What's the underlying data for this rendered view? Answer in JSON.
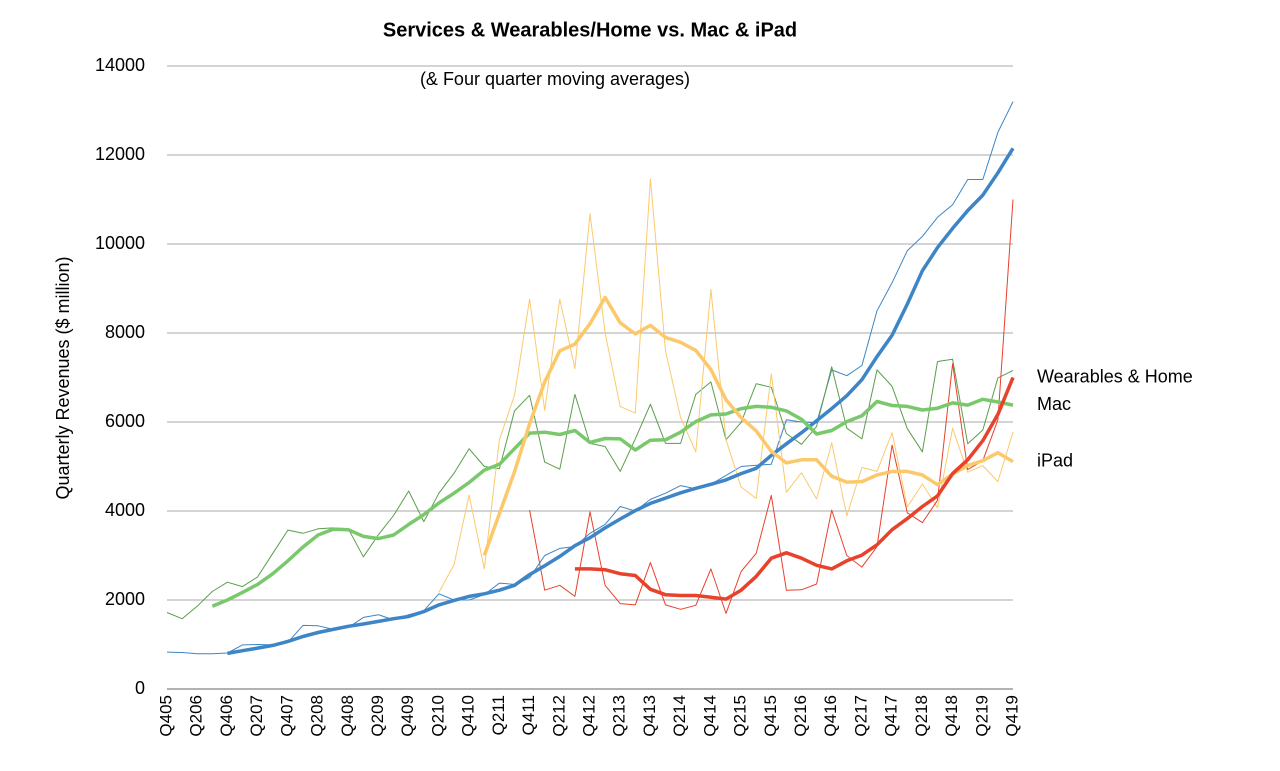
{
  "chart_data": {
    "type": "line",
    "title": "Services & Wearables/Home vs. Mac & iPad",
    "subtitle": "(& Four quarter moving averages)",
    "y_label": "Quarterly Revenues ($ million)",
    "categories": [
      "Q405",
      null,
      "Q206",
      null,
      "Q406",
      null,
      "Q207",
      null,
      "Q407",
      null,
      "Q208",
      null,
      "Q408",
      null,
      "Q209",
      null,
      "Q409",
      null,
      "Q210",
      null,
      "Q410",
      null,
      "Q211",
      null,
      "Q411",
      null,
      "Q212",
      null,
      "Q412",
      null,
      "Q213",
      null,
      "Q413",
      null,
      "Q214",
      null,
      "Q414",
      null,
      "Q215",
      null,
      "Q415",
      null,
      "Q216",
      null,
      "Q416",
      null,
      "Q217",
      null,
      "Q417",
      null,
      "Q218",
      null,
      "Q418",
      null,
      "Q219",
      null,
      "Q419"
    ],
    "ylim": [
      0,
      14000
    ],
    "yticks": [
      0,
      2000,
      4000,
      6000,
      8000,
      10000,
      12000,
      14000
    ],
    "grid": true,
    "series": [
      {
        "color": "#3d85c6",
        "width": 1,
        "values": [
          830,
          820,
          790,
          790,
          810,
          990,
          1000,
          990,
          1050,
          1430,
          1420,
          1340,
          1380,
          1610,
          1670,
          1550,
          1670,
          1760,
          2140,
          2000,
          2000,
          2120,
          2380,
          2350,
          2500,
          3000,
          3160,
          3200,
          3500,
          3700,
          4100,
          4000,
          4260,
          4400,
          4570,
          4500,
          4600,
          4800,
          5000,
          5030,
          5050,
          6050,
          6000,
          5980,
          7170,
          7040,
          7270,
          8500,
          9130,
          9850,
          10170,
          10600,
          10880,
          11450,
          11450,
          12510,
          13200
        ]
      },
      {
        "color": "#5a9e4a",
        "width": 1,
        "values": [
          1720,
          1580,
          1860,
          2190,
          2400,
          2300,
          2520,
          3050,
          3570,
          3500,
          3600,
          3620,
          3600,
          2970,
          3470,
          3900,
          4450,
          3760,
          4400,
          4850,
          5400,
          5000,
          4950,
          6250,
          6600,
          5100,
          4940,
          6620,
          5520,
          5450,
          4890,
          5620,
          6400,
          5520,
          5520,
          6620,
          6900,
          5600,
          5990,
          6860,
          6780,
          5740,
          5500,
          5900,
          7240,
          5860,
          5620,
          7170,
          6800,
          5850,
          5330,
          7360,
          7410,
          5510,
          5820,
          6990,
          7160
        ]
      },
      {
        "color": "#fbc96c",
        "width": 1,
        "values": [
          null,
          null,
          null,
          null,
          null,
          null,
          null,
          null,
          null,
          null,
          null,
          null,
          null,
          null,
          null,
          null,
          null,
          null,
          2170,
          2790,
          4360,
          2700,
          5600,
          6600,
          8760,
          6260,
          8760,
          7200,
          10680,
          8000,
          6350,
          6200,
          11460,
          7600,
          6100,
          5330,
          8980,
          5600,
          4540,
          4280,
          7080,
          4420,
          4860,
          4270,
          5530,
          3890,
          4980,
          4890,
          5760,
          4090,
          4610,
          4070,
          5860,
          4870,
          5020,
          4660,
          5770
        ]
      },
      {
        "color": "#e8412c",
        "width": 1,
        "values": [
          null,
          null,
          null,
          null,
          null,
          null,
          null,
          null,
          null,
          null,
          null,
          null,
          null,
          null,
          null,
          null,
          null,
          null,
          null,
          null,
          null,
          null,
          null,
          null,
          4020,
          2220,
          2330,
          2080,
          3980,
          2330,
          1920,
          1890,
          2840,
          1890,
          1790,
          1880,
          2700,
          1700,
          2640,
          3050,
          4350,
          2220,
          2230,
          2360,
          4020,
          3000,
          2740,
          3200,
          5480,
          3960,
          3740,
          4240,
          7310,
          4930,
          5130,
          6050,
          11000
        ]
      },
      {
        "color": "#3d85c6",
        "width": 3.5,
        "values": [
          null,
          null,
          null,
          null,
          800,
          860,
          920,
          980,
          1070,
          1180,
          1270,
          1340,
          1410,
          1460,
          1520,
          1580,
          1630,
          1740,
          1890,
          1990,
          2080,
          2140,
          2220,
          2330,
          2570,
          2770,
          2980,
          3220,
          3400,
          3620,
          3820,
          4010,
          4170,
          4290,
          4410,
          4510,
          4600,
          4700,
          4840,
          4960,
          5250,
          5510,
          5760,
          6030,
          6300,
          6590,
          6950,
          7470,
          7950,
          8650,
          9400,
          9920,
          10350,
          10750,
          11100,
          11600,
          12150
        ]
      },
      {
        "name": "Mac",
        "color": "#7ac86c",
        "width": 3.5,
        "values": [
          null,
          null,
          null,
          1860,
          2000,
          2170,
          2350,
          2590,
          2880,
          3190,
          3460,
          3590,
          3580,
          3430,
          3380,
          3460,
          3700,
          3920,
          4180,
          4400,
          4640,
          4920,
          5050,
          5400,
          5750,
          5770,
          5720,
          5810,
          5540,
          5630,
          5620,
          5370,
          5590,
          5600,
          5770,
          6010,
          6160,
          6180,
          6300,
          6350,
          6330,
          6250,
          6060,
          5730,
          5810,
          6010,
          6140,
          6460,
          6370,
          6350,
          6270,
          6310,
          6430,
          6380,
          6510,
          6450,
          6380
        ]
      },
      {
        "name": "iPad",
        "color": "#fbc96c",
        "width": 3.5,
        "values": [
          null,
          null,
          null,
          null,
          null,
          null,
          null,
          null,
          null,
          null,
          null,
          null,
          null,
          null,
          null,
          null,
          null,
          null,
          null,
          null,
          null,
          3000,
          3940,
          4880,
          5960,
          6900,
          7600,
          7750,
          8210,
          8800,
          8230,
          7980,
          8170,
          7900,
          7790,
          7610,
          7180,
          6500,
          6100,
          5800,
          5340,
          5080,
          5150,
          5150,
          4780,
          4650,
          4660,
          4810,
          4890,
          4890,
          4810,
          4590,
          4830,
          5020,
          5130,
          5310,
          5110
        ]
      },
      {
        "name": "Wearables & Home",
        "color": "#e8412c",
        "width": 3.5,
        "values": [
          null,
          null,
          null,
          null,
          null,
          null,
          null,
          null,
          null,
          null,
          null,
          null,
          null,
          null,
          null,
          null,
          null,
          null,
          null,
          null,
          null,
          null,
          null,
          null,
          null,
          null,
          null,
          2700,
          2700,
          2680,
          2590,
          2550,
          2240,
          2120,
          2100,
          2100,
          2060,
          2020,
          2220,
          2530,
          2940,
          3060,
          2940,
          2780,
          2700,
          2880,
          3010,
          3240,
          3580,
          3830,
          4100,
          4340,
          4840,
          5150,
          5580,
          6170,
          7000
        ]
      }
    ]
  }
}
